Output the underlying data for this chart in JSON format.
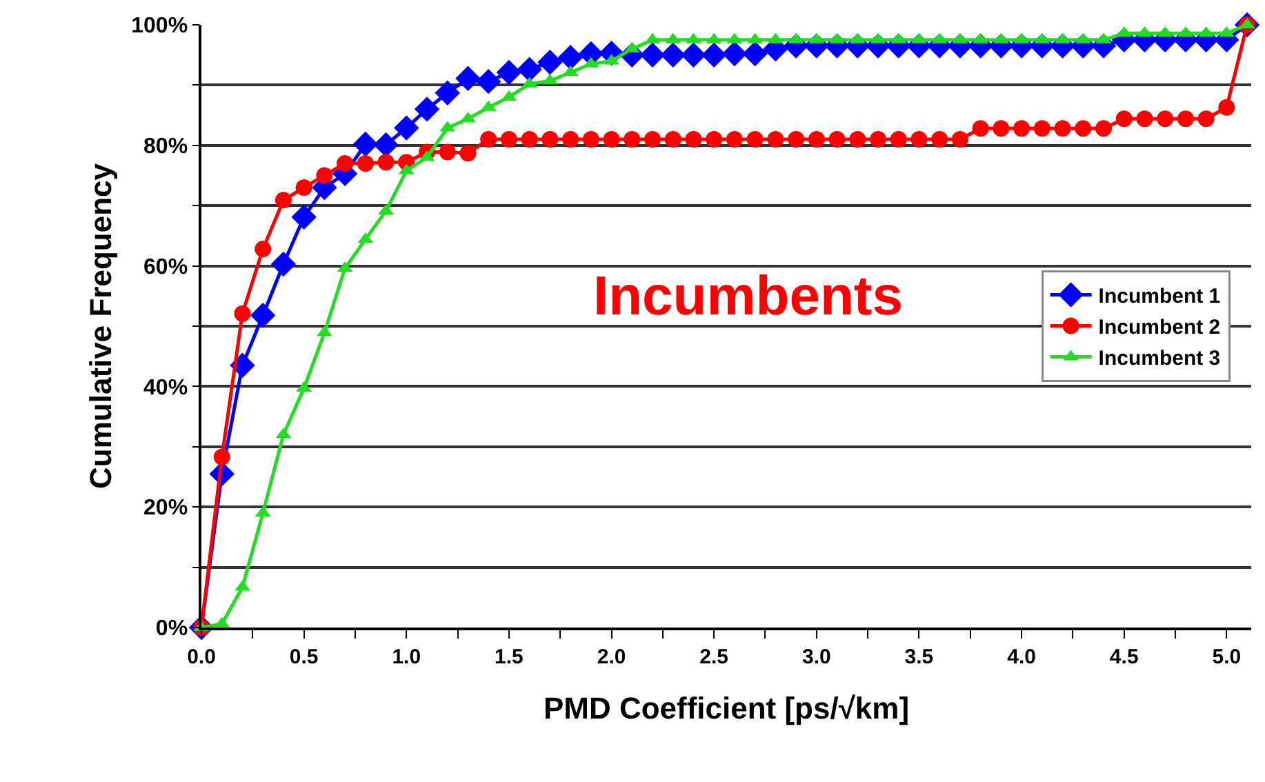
{
  "chart_data": {
    "type": "line",
    "xlabel": "PMD Coefficient [ps/√km]",
    "ylabel": "Cumulative Frequency",
    "annotations": [
      "Incumbents"
    ],
    "x": [
      0.0,
      0.1,
      0.2,
      0.3,
      0.4,
      0.5,
      0.6,
      0.7,
      0.8,
      0.9,
      1.0,
      1.1,
      1.2,
      1.3,
      1.4,
      1.5,
      1.6,
      1.7,
      1.8,
      1.9,
      2.0,
      2.1,
      2.2,
      2.3,
      2.4,
      2.5,
      2.6,
      2.7,
      2.8,
      2.9,
      3.0,
      3.1,
      3.2,
      3.3,
      3.4,
      3.5,
      3.6,
      3.7,
      3.8,
      3.9,
      4.0,
      4.1,
      4.2,
      4.3,
      4.4,
      4.5,
      4.6,
      4.7,
      4.8,
      4.9,
      5.0,
      5.1
    ],
    "series": [
      {
        "name": "Incumbent 1",
        "color": "#0000ff",
        "marker": "diamond",
        "values": [
          0,
          25.5,
          43.5,
          51.8,
          60.3,
          68.1,
          73,
          75.3,
          80.2,
          80.1,
          82.9,
          86,
          88.7,
          91.1,
          90.6,
          92.1,
          92.6,
          93.8,
          94.6,
          95.2,
          95.3,
          95,
          95,
          95,
          95,
          95,
          95.2,
          95.2,
          96,
          96.5,
          96.5,
          96.5,
          96.5,
          96.5,
          96.5,
          96.5,
          96.5,
          96.5,
          96.5,
          96.5,
          96.5,
          96.5,
          96.5,
          96.5,
          96.5,
          97.5,
          97.5,
          97.5,
          97.5,
          97.5,
          97.5,
          100
        ]
      },
      {
        "name": "Incumbent 2",
        "color": "#ff0000",
        "marker": "circle",
        "values": [
          0,
          28.3,
          52.1,
          62.8,
          70.9,
          73,
          75,
          77,
          77,
          77.2,
          77.2,
          78.9,
          78.9,
          78.7,
          81,
          81,
          81,
          81,
          81,
          81,
          81,
          81,
          81,
          81,
          81,
          81,
          81,
          81,
          81,
          81,
          81,
          81,
          81,
          81,
          81,
          81,
          81,
          81,
          82.8,
          82.8,
          82.8,
          82.8,
          82.8,
          82.8,
          82.8,
          84.4,
          84.4,
          84.4,
          84.4,
          84.4,
          86.3,
          100
        ]
      },
      {
        "name": "Incumbent 3",
        "color": "#22dd22",
        "marker": "triangle",
        "values": [
          0,
          0.6,
          6.7,
          19,
          32,
          39.7,
          48.9,
          59.6,
          64.4,
          69.1,
          75.8,
          78,
          82.9,
          84.4,
          86.3,
          88,
          90.2,
          90.7,
          92.1,
          93.5,
          94,
          96,
          97.5,
          97.5,
          97.5,
          97.5,
          97.5,
          97.5,
          97.5,
          97.5,
          97.5,
          97.5,
          97.5,
          97.5,
          97.5,
          97.5,
          97.5,
          97.5,
          97.5,
          97.5,
          97.5,
          97.5,
          97.5,
          97.5,
          97.5,
          98.6,
          98.6,
          98.6,
          98.6,
          98.6,
          98.6,
          100
        ]
      }
    ],
    "xlim": [
      0,
      5.12
    ],
    "xticks": [
      {
        "value": 0,
        "label": "0.0"
      },
      {
        "value": 0.25,
        "label": null
      },
      {
        "value": 0.5,
        "label": "0.5"
      },
      {
        "value": 0.75,
        "label": null
      },
      {
        "value": 1,
        "label": "1.0"
      },
      {
        "value": 1.25,
        "label": null
      },
      {
        "value": 1.5,
        "label": "1.5"
      },
      {
        "value": 1.75,
        "label": null
      },
      {
        "value": 2,
        "label": "2.0"
      },
      {
        "value": 2.25,
        "label": null
      },
      {
        "value": 2.5,
        "label": "2.5"
      },
      {
        "value": 2.75,
        "label": null
      },
      {
        "value": 3,
        "label": "3.0"
      },
      {
        "value": 3.25,
        "label": null
      },
      {
        "value": 3.5,
        "label": "3.5"
      },
      {
        "value": 3.75,
        "label": null
      },
      {
        "value": 4,
        "label": "4.0"
      },
      {
        "value": 4.25,
        "label": null
      },
      {
        "value": 4.5,
        "label": "4.5"
      },
      {
        "value": 4.75,
        "label": null
      },
      {
        "value": 5,
        "label": "5.0"
      }
    ],
    "ylim": [
      0,
      100
    ],
    "yticks": [
      {
        "value": 0,
        "label": "0%"
      },
      {
        "value": 10,
        "label": null
      },
      {
        "value": 20,
        "label": "20%"
      },
      {
        "value": 30,
        "label": null
      },
      {
        "value": 40,
        "label": "40%"
      },
      {
        "value": 50,
        "label": null
      },
      {
        "value": 60,
        "label": "60%"
      },
      {
        "value": 70,
        "label": null
      },
      {
        "value": 80,
        "label": "80%"
      },
      {
        "value": 90,
        "label": null
      },
      {
        "value": 100,
        "label": "100%"
      }
    ],
    "grid": "y",
    "legend": "right",
    "line_style": "solid"
  }
}
